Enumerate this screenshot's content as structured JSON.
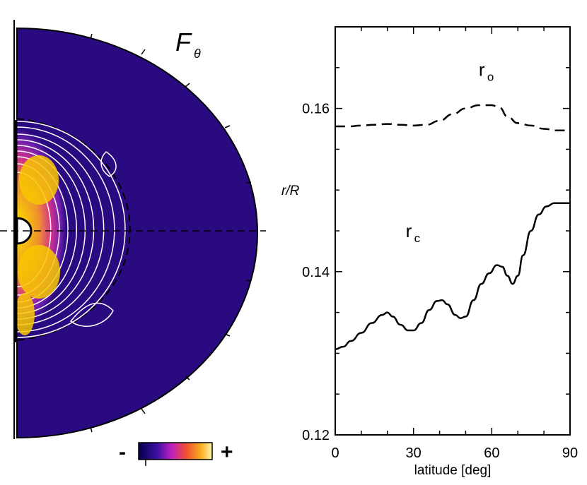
{
  "left_panel": {
    "title_main": "F",
    "title_subscript": "θ",
    "colorbar": {
      "min_label": "-",
      "max_label": "+"
    },
    "colors": {
      "background": "#2a0a80",
      "inner": "#f5c000",
      "magenta": "#c020c0",
      "orange": "#f07830",
      "contour": "#ffffff",
      "boundary": "#000000"
    }
  },
  "chart_data": {
    "type": "line",
    "ylabel": "r/R",
    "xlabel": "latitude [deg]",
    "xlim": [
      0,
      90
    ],
    "ylim": [
      0.12,
      0.17
    ],
    "x_ticks": [
      0,
      30,
      60,
      90
    ],
    "x_tick_labels": [
      "0",
      "30",
      "60",
      "90"
    ],
    "y_ticks": [
      0.12,
      0.14,
      0.16
    ],
    "y_tick_labels": [
      "0.12",
      "0.14",
      "0.16"
    ],
    "series": [
      {
        "name": "r_o",
        "label_main": "r",
        "label_sub": "o",
        "style": "dashed",
        "x": [
          0,
          5,
          10,
          15,
          20,
          25,
          30,
          35,
          40,
          45,
          50,
          55,
          60,
          63,
          66,
          70,
          75,
          80,
          85,
          90
        ],
        "y": [
          0.1578,
          0.1578,
          0.1579,
          0.158,
          0.1581,
          0.158,
          0.1579,
          0.158,
          0.1585,
          0.1593,
          0.16,
          0.1604,
          0.1604,
          0.1601,
          0.159,
          0.1582,
          0.1579,
          0.1575,
          0.1573,
          0.1573
        ]
      },
      {
        "name": "r_c",
        "label_main": "r",
        "label_sub": "c",
        "style": "solid",
        "x": [
          0,
          3,
          6,
          10,
          14,
          18,
          20,
          22,
          25,
          28,
          30,
          33,
          36,
          39,
          41,
          43,
          46,
          48,
          50,
          53,
          56,
          59,
          62,
          64,
          66,
          68,
          70,
          72,
          75,
          78,
          81,
          84,
          87,
          90
        ],
        "y": [
          0.1305,
          0.1308,
          0.1315,
          0.1325,
          0.1337,
          0.1347,
          0.135,
          0.1345,
          0.1335,
          0.1328,
          0.1328,
          0.1337,
          0.1353,
          0.1364,
          0.1365,
          0.136,
          0.1347,
          0.1343,
          0.1345,
          0.1365,
          0.1385,
          0.1398,
          0.1408,
          0.1406,
          0.1395,
          0.1385,
          0.1395,
          0.142,
          0.145,
          0.147,
          0.148,
          0.1484,
          0.1484,
          0.1484
        ]
      }
    ]
  }
}
